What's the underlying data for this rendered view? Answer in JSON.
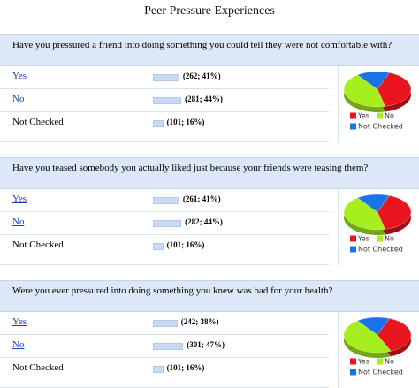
{
  "title": "Peer Pressure Experiences",
  "questions": [
    {
      "text": "Have you pressured a friend into doing something you could tell they were not comfortable with?",
      "options": [
        {
          "label": "Yes",
          "count": 262,
          "percent": 41,
          "result": "(262; 41%)",
          "color": "#e8141e"
        },
        {
          "label": "No",
          "count": 281,
          "percent": 44,
          "result": "(281; 44%)",
          "color": "#a6ee1e"
        },
        {
          "label": "Not Checked",
          "count": 101,
          "percent": 16,
          "result": "(101; 16%)",
          "color": "#1a73e8"
        }
      ]
    },
    {
      "text": "Have you teased somebody you actually liked just because your friends were teasing them?",
      "options": [
        {
          "label": "Yes",
          "count": 261,
          "percent": 41,
          "result": "(261; 41%)",
          "color": "#e8141e"
        },
        {
          "label": "No",
          "count": 282,
          "percent": 44,
          "result": "(282; 44%)",
          "color": "#a6ee1e"
        },
        {
          "label": "Not Checked",
          "count": 101,
          "percent": 16,
          "result": "(101; 16%)",
          "color": "#1a73e8"
        }
      ]
    },
    {
      "text": "Were you ever pressured into doing something you knew was bad for your health?",
      "options": [
        {
          "label": "Yes",
          "count": 242,
          "percent": 38,
          "result": "(242; 38%)",
          "color": "#e8141e"
        },
        {
          "label": "No",
          "count": 301,
          "percent": 47,
          "result": "(301; 47%)",
          "color": "#a6ee1e"
        },
        {
          "label": "Not Checked",
          "count": 101,
          "percent": 16,
          "result": "(101; 16%)",
          "color": "#1a73e8"
        }
      ]
    }
  ]
}
